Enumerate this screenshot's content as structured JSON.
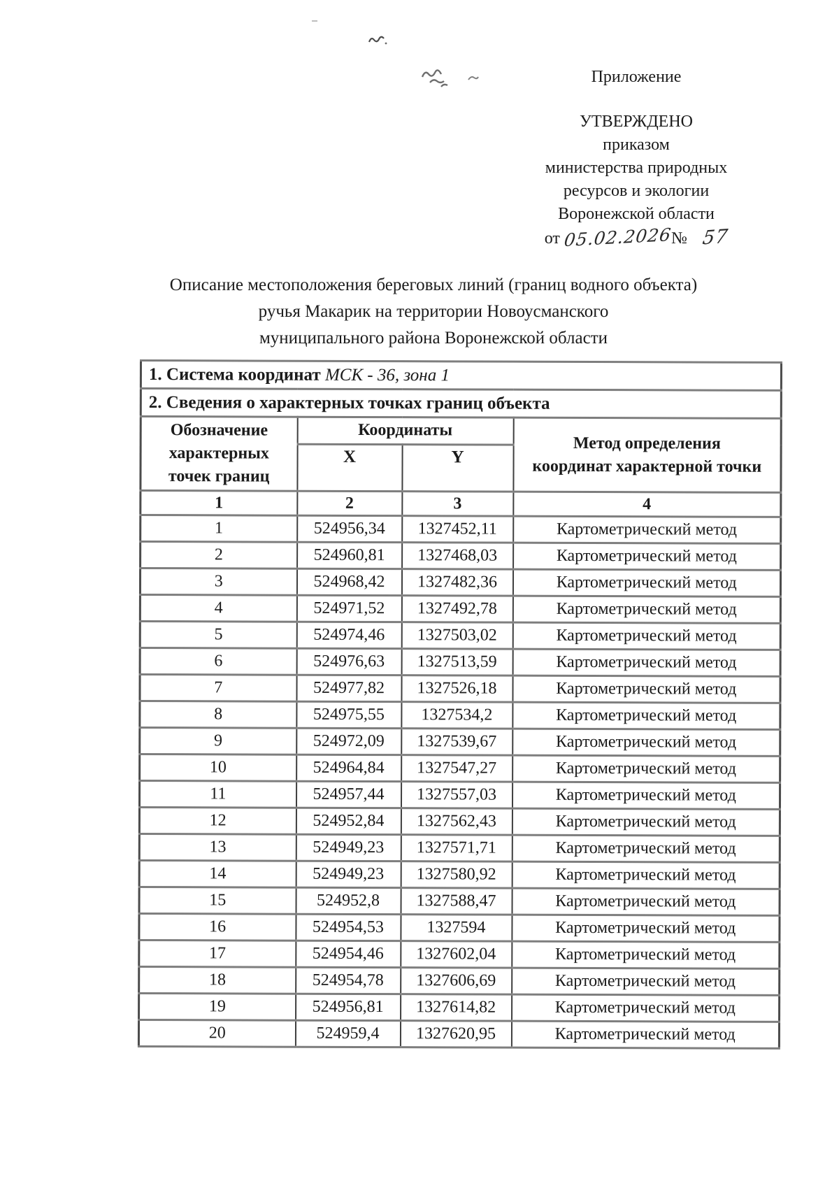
{
  "header_block": {
    "appendix": "Приложение",
    "approved": "УТВЕРЖДЕНО",
    "order_line": "приказом",
    "ministry_line1": "министерства природных",
    "ministry_line2": "ресурсов и экологии",
    "ministry_line3": "Воронежской области",
    "date_prefix": "от",
    "date_value": "05.02.2026",
    "number_sign": "№",
    "number_value": "57"
  },
  "title": {
    "line1": "Описание местоположения береговых линий (границ водного объекта)",
    "line2": "ручья Макарик на территории Новоусманского",
    "line3": "муниципального района Воронежской области"
  },
  "table": {
    "section1_label": "1. Система координат",
    "section1_value": "МСК - 36, зона 1",
    "section2_label": "2. Сведения о характерных точках границ объекта",
    "headers": {
      "designation": "Обозначение характерных точек границ",
      "coordinates": "Координаты",
      "x": "X",
      "y": "Y",
      "method": "Метод определения координат характерной точки"
    },
    "column_numbers": [
      "1",
      "2",
      "3",
      "4"
    ],
    "rows": [
      {
        "n": "1",
        "x": "524956,34",
        "y": "1327452,11",
        "method": "Картометрический метод"
      },
      {
        "n": "2",
        "x": "524960,81",
        "y": "1327468,03",
        "method": "Картометрический метод"
      },
      {
        "n": "3",
        "x": "524968,42",
        "y": "1327482,36",
        "method": "Картометрический метод"
      },
      {
        "n": "4",
        "x": "524971,52",
        "y": "1327492,78",
        "method": "Картометрический метод"
      },
      {
        "n": "5",
        "x": "524974,46",
        "y": "1327503,02",
        "method": "Картометрический метод"
      },
      {
        "n": "6",
        "x": "524976,63",
        "y": "1327513,59",
        "method": "Картометрический метод"
      },
      {
        "n": "7",
        "x": "524977,82",
        "y": "1327526,18",
        "method": "Картометрический метод"
      },
      {
        "n": "8",
        "x": "524975,55",
        "y": "1327534,2",
        "method": "Картометрический метод"
      },
      {
        "n": "9",
        "x": "524972,09",
        "y": "1327539,67",
        "method": "Картометрический метод"
      },
      {
        "n": "10",
        "x": "524964,84",
        "y": "1327547,27",
        "method": "Картометрический метод"
      },
      {
        "n": "11",
        "x": "524957,44",
        "y": "1327557,03",
        "method": "Картометрический метод"
      },
      {
        "n": "12",
        "x": "524952,84",
        "y": "1327562,43",
        "method": "Картометрический метод"
      },
      {
        "n": "13",
        "x": "524949,23",
        "y": "1327571,71",
        "method": "Картометрический метод"
      },
      {
        "n": "14",
        "x": "524949,23",
        "y": "1327580,92",
        "method": "Картометрический метод"
      },
      {
        "n": "15",
        "x": "524952,8",
        "y": "1327588,47",
        "method": "Картометрический метод"
      },
      {
        "n": "16",
        "x": "524954,53",
        "y": "1327594",
        "method": "Картометрический метод"
      },
      {
        "n": "17",
        "x": "524954,46",
        "y": "1327602,04",
        "method": "Картометрический метод"
      },
      {
        "n": "18",
        "x": "524954,78",
        "y": "1327606,69",
        "method": "Картометрический метод"
      },
      {
        "n": "19",
        "x": "524956,81",
        "y": "1327614,82",
        "method": "Картометрический метод"
      },
      {
        "n": "20",
        "x": "524959,4",
        "y": "1327620,95",
        "method": "Картометрический метод"
      }
    ]
  }
}
